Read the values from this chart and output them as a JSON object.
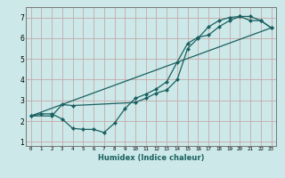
{
  "title": "",
  "xlabel": "Humidex (Indice chaleur)",
  "ylabel": "",
  "bg_color": "#cce8e8",
  "grid_color": "#c8a8a8",
  "line_color": "#1a6060",
  "xlim": [
    -0.5,
    23.5
  ],
  "ylim": [
    0.8,
    7.5
  ],
  "xticks": [
    0,
    1,
    2,
    3,
    4,
    5,
    6,
    7,
    8,
    9,
    10,
    11,
    12,
    13,
    14,
    15,
    16,
    17,
    18,
    19,
    20,
    21,
    22,
    23
  ],
  "yticks": [
    1,
    2,
    3,
    4,
    5,
    6,
    7
  ],
  "line1_x": [
    0,
    1,
    2,
    3,
    4,
    5,
    6,
    7,
    8,
    9,
    10,
    11,
    12,
    13,
    14,
    15,
    16,
    17,
    18,
    19,
    20,
    21,
    22,
    23
  ],
  "line1_y": [
    2.25,
    2.35,
    2.35,
    2.1,
    1.65,
    1.6,
    1.6,
    1.45,
    1.9,
    2.6,
    3.1,
    3.3,
    3.55,
    3.9,
    4.85,
    5.75,
    6.05,
    6.15,
    6.55,
    6.85,
    7.05,
    6.85,
    6.85,
    6.5
  ],
  "line2_x": [
    0,
    2,
    3,
    4,
    10,
    11,
    12,
    13,
    14,
    15,
    16,
    17,
    18,
    19,
    20,
    21,
    22,
    23
  ],
  "line2_y": [
    2.25,
    2.25,
    2.8,
    2.75,
    2.9,
    3.1,
    3.35,
    3.5,
    4.0,
    5.5,
    6.0,
    6.55,
    6.85,
    7.0,
    7.05,
    7.05,
    6.85,
    6.5
  ],
  "line3_x": [
    0,
    23
  ],
  "line3_y": [
    2.25,
    6.5
  ]
}
